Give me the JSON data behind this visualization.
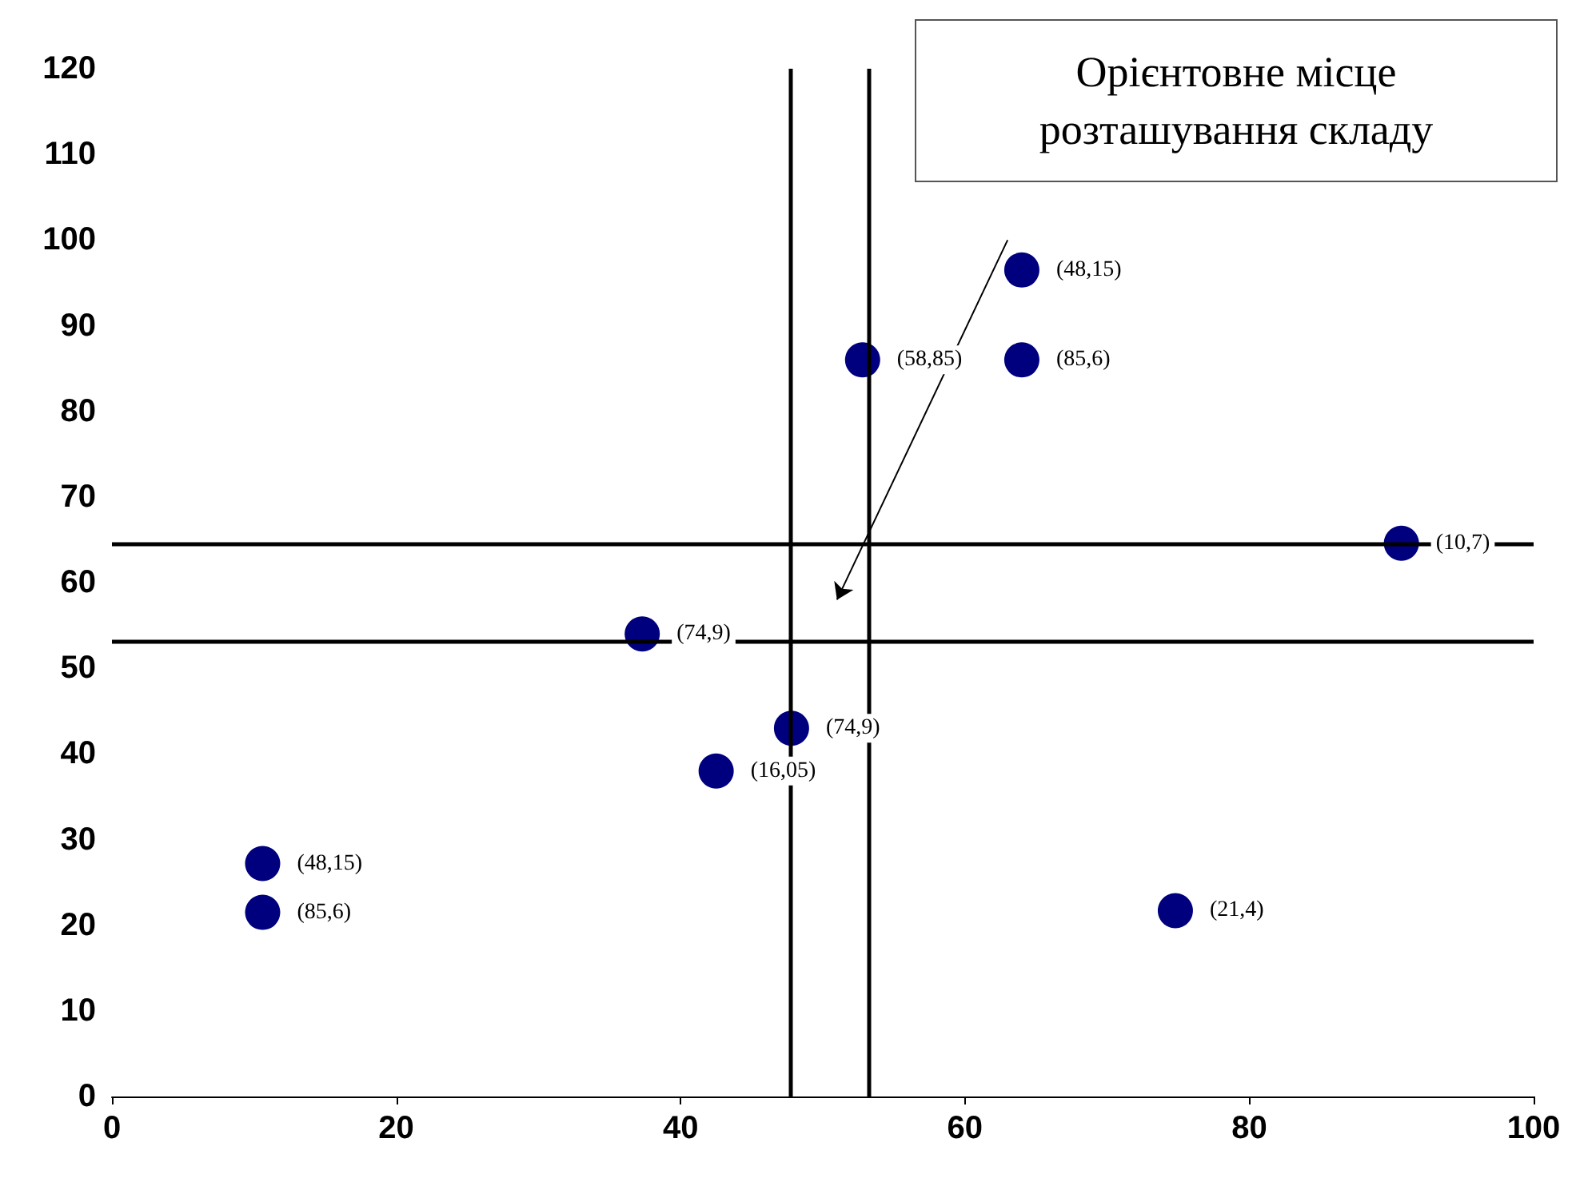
{
  "chart_data": {
    "type": "scatter",
    "x": [
      64,
      52.8,
      64,
      90.7,
      37.3,
      47.8,
      42.5,
      10.6,
      10.6,
      74.8
    ],
    "series": [
      {
        "color": "#00007f",
        "values": [
          96.5,
          86,
          86,
          64.6,
          54,
          43,
          38,
          27.2,
          21.5,
          21.7
        ]
      }
    ],
    "marker": "circle",
    "grid": false,
    "xlim": [
      0,
      100
    ],
    "xticks": [
      0,
      20,
      40,
      60,
      80,
      100
    ],
    "ylim": [
      0,
      120
    ],
    "yticks": [
      0,
      10,
      20,
      30,
      40,
      50,
      60,
      70,
      80,
      90,
      100,
      110,
      120
    ],
    "ref_lines": [
      {
        "axis": "x",
        "value": 47.7,
        "color": "#000000"
      },
      {
        "axis": "x",
        "value": 53.2,
        "color": "#000000"
      },
      {
        "axis": "y",
        "value": 64.6,
        "color": "#000000"
      },
      {
        "axis": "y",
        "value": 53.1,
        "color": "#000000"
      }
    ],
    "annotations": [
      "Орієнтовне місце розташування складу",
      {
        "text": "(48,15)",
        "x": 64,
        "y": 96.5
      },
      {
        "text": "(58,85)",
        "x": 52.8,
        "y": 86
      },
      {
        "text": "(85,6)",
        "x": 64,
        "y": 86
      },
      {
        "text": "(10,7)",
        "x": 90.7,
        "y": 64.6
      },
      {
        "text": "(74,9)",
        "x": 37.3,
        "y": 54
      },
      {
        "text": "(74,9)",
        "x": 47.8,
        "y": 43
      },
      {
        "text": "(16,05)",
        "x": 42.5,
        "y": 38
      },
      {
        "text": "(48,15)",
        "x": 10.6,
        "y": 27.2
      },
      {
        "text": "(85,6)",
        "x": 10.6,
        "y": 21.5
      },
      {
        "text": "(21,4)",
        "x": 74.8,
        "y": 21.7
      }
    ]
  }
}
